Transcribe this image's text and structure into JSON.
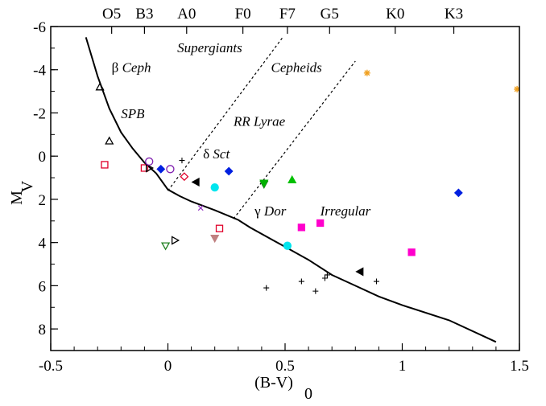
{
  "chart_data": {
    "type": "scatter",
    "xlabel": "(B-V)",
    "xlabel_sub": "0",
    "ylabel": "M",
    "ylabel_sub": "V",
    "xlim": [
      -0.5,
      1.5
    ],
    "ylim": [
      -6,
      9
    ],
    "y_inverted": true,
    "grid": false,
    "x_ticks": [
      -0.5,
      0,
      0.5,
      1,
      1.5
    ],
    "x_tick_labels": [
      "-0.5",
      "0",
      "0.5",
      "1",
      "1.5"
    ],
    "y_ticks": [
      -6,
      -4,
      -2,
      0,
      2,
      4,
      6,
      8
    ],
    "y_tick_labels": [
      "-6",
      "-4",
      "-2",
      "0",
      "2",
      "4",
      "6",
      "8"
    ],
    "spectral_types": [
      {
        "label": "O5",
        "x": -0.24
      },
      {
        "label": "B3",
        "x": -0.1
      },
      {
        "label": "A0",
        "x": 0.08
      },
      {
        "label": "F0",
        "x": 0.32
      },
      {
        "label": "F7",
        "x": 0.51
      },
      {
        "label": "G5",
        "x": 0.69
      },
      {
        "label": "K0",
        "x": 0.97
      },
      {
        "label": "K3",
        "x": 1.22
      }
    ],
    "main_sequence": [
      [
        -0.35,
        -5.5
      ],
      [
        -0.3,
        -3.7
      ],
      [
        -0.25,
        -2.2
      ],
      [
        -0.2,
        -1.1
      ],
      [
        -0.15,
        -0.35
      ],
      [
        -0.1,
        0.3
      ],
      [
        -0.05,
        0.8
      ],
      [
        0.0,
        1.55
      ],
      [
        0.05,
        1.85
      ],
      [
        0.1,
        2.1
      ],
      [
        0.2,
        2.5
      ],
      [
        0.3,
        2.95
      ],
      [
        0.35,
        3.3
      ],
      [
        0.45,
        3.9
      ],
      [
        0.5,
        4.2
      ],
      [
        0.6,
        4.8
      ],
      [
        0.7,
        5.5
      ],
      [
        0.8,
        6.0
      ],
      [
        0.9,
        6.5
      ],
      [
        1.0,
        6.9
      ],
      [
        1.2,
        7.6
      ],
      [
        1.4,
        8.6
      ]
    ],
    "instability_strip": [
      {
        "from": [
          0.0,
          1.6
        ],
        "to": [
          0.49,
          -5.5
        ]
      },
      {
        "from": [
          0.28,
          2.9
        ],
        "to": [
          0.8,
          -4.4
        ]
      }
    ],
    "region_labels": [
      {
        "text": "Ceph",
        "prefix": "β",
        "x": -0.24,
        "y": -3.9
      },
      {
        "text": "SPB",
        "prefix": "",
        "x": -0.2,
        "y": -1.75
      },
      {
        "text": "Supergiants",
        "prefix": "",
        "x": 0.04,
        "y": -4.8
      },
      {
        "text": "Cepheids",
        "prefix": "",
        "x": 0.44,
        "y": -3.9
      },
      {
        "text": "RR Lyrae",
        "prefix": "",
        "x": 0.28,
        "y": -1.4
      },
      {
        "text": "Sct",
        "prefix": "δ",
        "x": 0.15,
        "y": 0.1
      },
      {
        "text": "Dor",
        "prefix": "γ",
        "x": 0.37,
        "y": 2.75
      },
      {
        "text": "Irregular",
        "prefix": "",
        "x": 0.65,
        "y": 2.75
      }
    ],
    "points": [
      {
        "x": -0.29,
        "y": -3.2,
        "marker": "triangle-up-open",
        "color": "#000000"
      },
      {
        "x": -0.25,
        "y": -0.7,
        "marker": "triangle-up-open",
        "color": "#000000"
      },
      {
        "x": -0.27,
        "y": 0.4,
        "marker": "square-open",
        "color": "#e0002a"
      },
      {
        "x": -0.1,
        "y": 0.55,
        "marker": "square-open",
        "color": "#e0002a"
      },
      {
        "x": -0.08,
        "y": 0.55,
        "marker": "triangle-right-open",
        "color": "#000000"
      },
      {
        "x": -0.03,
        "y": 0.6,
        "marker": "diamond",
        "color": "#0020e0"
      },
      {
        "x": -0.08,
        "y": 0.25,
        "marker": "circle-open",
        "color": "#8020b0"
      },
      {
        "x": 0.01,
        "y": 0.6,
        "marker": "circle-open",
        "color": "#8020b0"
      },
      {
        "x": 0.06,
        "y": 0.2,
        "marker": "plus",
        "color": "#000000"
      },
      {
        "x": 0.07,
        "y": 0.95,
        "marker": "diamond-open",
        "color": "#e0002a"
      },
      {
        "x": 0.12,
        "y": 1.2,
        "marker": "triangle-left",
        "color": "#000000"
      },
      {
        "x": 0.2,
        "y": 1.45,
        "marker": "circle",
        "color": "#00e5ee"
      },
      {
        "x": 0.26,
        "y": 0.7,
        "marker": "diamond",
        "color": "#0020e0"
      },
      {
        "x": 0.41,
        "y": 1.3,
        "marker": "triangle-down-open",
        "color": "#208020"
      },
      {
        "x": 0.41,
        "y": 1.25,
        "marker": "triangle-down",
        "color": "#00b000"
      },
      {
        "x": 0.53,
        "y": 1.1,
        "marker": "triangle-up",
        "color": "#00c000"
      },
      {
        "x": 0.14,
        "y": 2.4,
        "marker": "cross",
        "color": "#9030c0"
      },
      {
        "x": 0.22,
        "y": 3.35,
        "marker": "square-open",
        "color": "#e0002a"
      },
      {
        "x": 0.2,
        "y": 3.8,
        "marker": "triangle-down",
        "color": "#c08080"
      },
      {
        "x": -0.01,
        "y": 4.15,
        "marker": "triangle-down-open",
        "color": "#208020"
      },
      {
        "x": 0.03,
        "y": 3.9,
        "marker": "triangle-right-open",
        "color": "#000000"
      },
      {
        "x": 0.51,
        "y": 4.15,
        "marker": "circle",
        "color": "#00e5ee"
      },
      {
        "x": 0.57,
        "y": 3.3,
        "marker": "square",
        "color": "#ff00cc"
      },
      {
        "x": 0.65,
        "y": 3.1,
        "marker": "square",
        "color": "#ff00cc"
      },
      {
        "x": 1.04,
        "y": 4.45,
        "marker": "square",
        "color": "#ff00cc"
      },
      {
        "x": 0.82,
        "y": 5.35,
        "marker": "triangle-left",
        "color": "#000000"
      },
      {
        "x": 1.24,
        "y": 1.7,
        "marker": "diamond",
        "color": "#0020e0"
      },
      {
        "x": 0.85,
        "y": -3.85,
        "marker": "asterisk",
        "color": "#f0a020"
      },
      {
        "x": 1.49,
        "y": -3.1,
        "marker": "asterisk",
        "color": "#f0a020"
      },
      {
        "x": 0.42,
        "y": 6.1,
        "marker": "plus",
        "color": "#000000"
      },
      {
        "x": 0.57,
        "y": 5.8,
        "marker": "plus",
        "color": "#000000"
      },
      {
        "x": 0.63,
        "y": 6.25,
        "marker": "plus",
        "color": "#000000"
      },
      {
        "x": 0.67,
        "y": 5.65,
        "marker": "plus",
        "color": "#000000"
      },
      {
        "x": 0.68,
        "y": 5.5,
        "marker": "plus",
        "color": "#000000"
      },
      {
        "x": 0.89,
        "y": 5.8,
        "marker": "plus",
        "color": "#000000"
      }
    ]
  }
}
